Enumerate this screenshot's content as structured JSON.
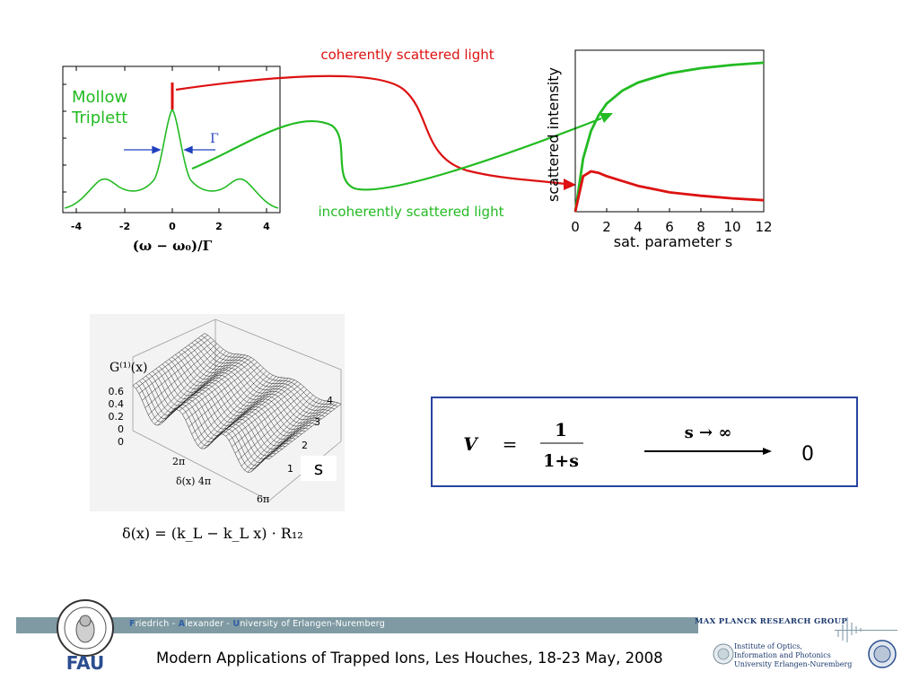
{
  "mollow": {
    "label_line1": "Mollow",
    "label_line2": "Triplett",
    "gamma": "Γ",
    "x_ticks": [
      "-4",
      "-2",
      "0",
      "2",
      "4"
    ],
    "xlabel": "(ω − ω₀)/Γ"
  },
  "annotations": {
    "coherent": "coherently scattered light",
    "incoherent": "incoherently scattered light"
  },
  "chart_data": {
    "type": "line",
    "ylabel": "scattered intensity",
    "xlabel": "sat. parameter s",
    "x_ticks": [
      "0",
      "2",
      "4",
      "6",
      "8",
      "10",
      "12"
    ],
    "xlim": [
      0,
      12
    ],
    "series": [
      {
        "color": "#22bb22",
        "x": [
          0,
          0.5,
          1,
          1.5,
          2,
          3,
          4,
          5,
          6,
          8,
          10,
          12
        ],
        "y": [
          0,
          0.33,
          0.5,
          0.6,
          0.67,
          0.75,
          0.8,
          0.83,
          0.857,
          0.889,
          0.909,
          0.923
        ]
      },
      {
        "color": "#dd1111",
        "x": [
          0,
          0.5,
          1,
          1.5,
          2,
          3,
          4,
          5,
          6,
          8,
          10,
          12
        ],
        "y": [
          0,
          0.22,
          0.25,
          0.24,
          0.22,
          0.19,
          0.16,
          0.14,
          0.12,
          0.099,
          0.083,
          0.071
        ]
      }
    ]
  },
  "surface": {
    "zlabel": "G⁽¹⁾(x)",
    "z_ticks": [
      "0.6",
      "0.4",
      "0.2",
      "0",
      "0"
    ],
    "x_ticks": [
      "2π",
      "δ(x)  4π",
      "6π"
    ],
    "s_ticks": [
      "1",
      "2",
      "3",
      "4"
    ],
    "s_label": "s",
    "formula": "δ(x) = (k_L − k_L x) · R₁₂"
  },
  "visibility": {
    "lhs": "V",
    "eq": "=",
    "num": "1",
    "den": "1+s",
    "limit": "s → ∞",
    "result": "0"
  },
  "footer": {
    "university_prefix_F": "F",
    "university_1": "riedrich - ",
    "university_prefix_A": "A",
    "university_2": "lexander - ",
    "university_prefix_U": "U",
    "university_3": "niversity of Erlangen-Nuremberg",
    "fau": "FAU",
    "conference": "Modern Applications of Trapped Ions, Les Houches, 18-23 May, 2008",
    "mpg": "MAX PLANCK RESEARCH GROUP",
    "institute_1": "Institute of Optics,",
    "institute_2": "Information and Photonics",
    "institute_3": "University Erlangen-Nuremberg"
  },
  "colors": {
    "green": "#22bb22",
    "red": "#dd1111",
    "blue": "#2040c0",
    "box": "#2844a0"
  }
}
